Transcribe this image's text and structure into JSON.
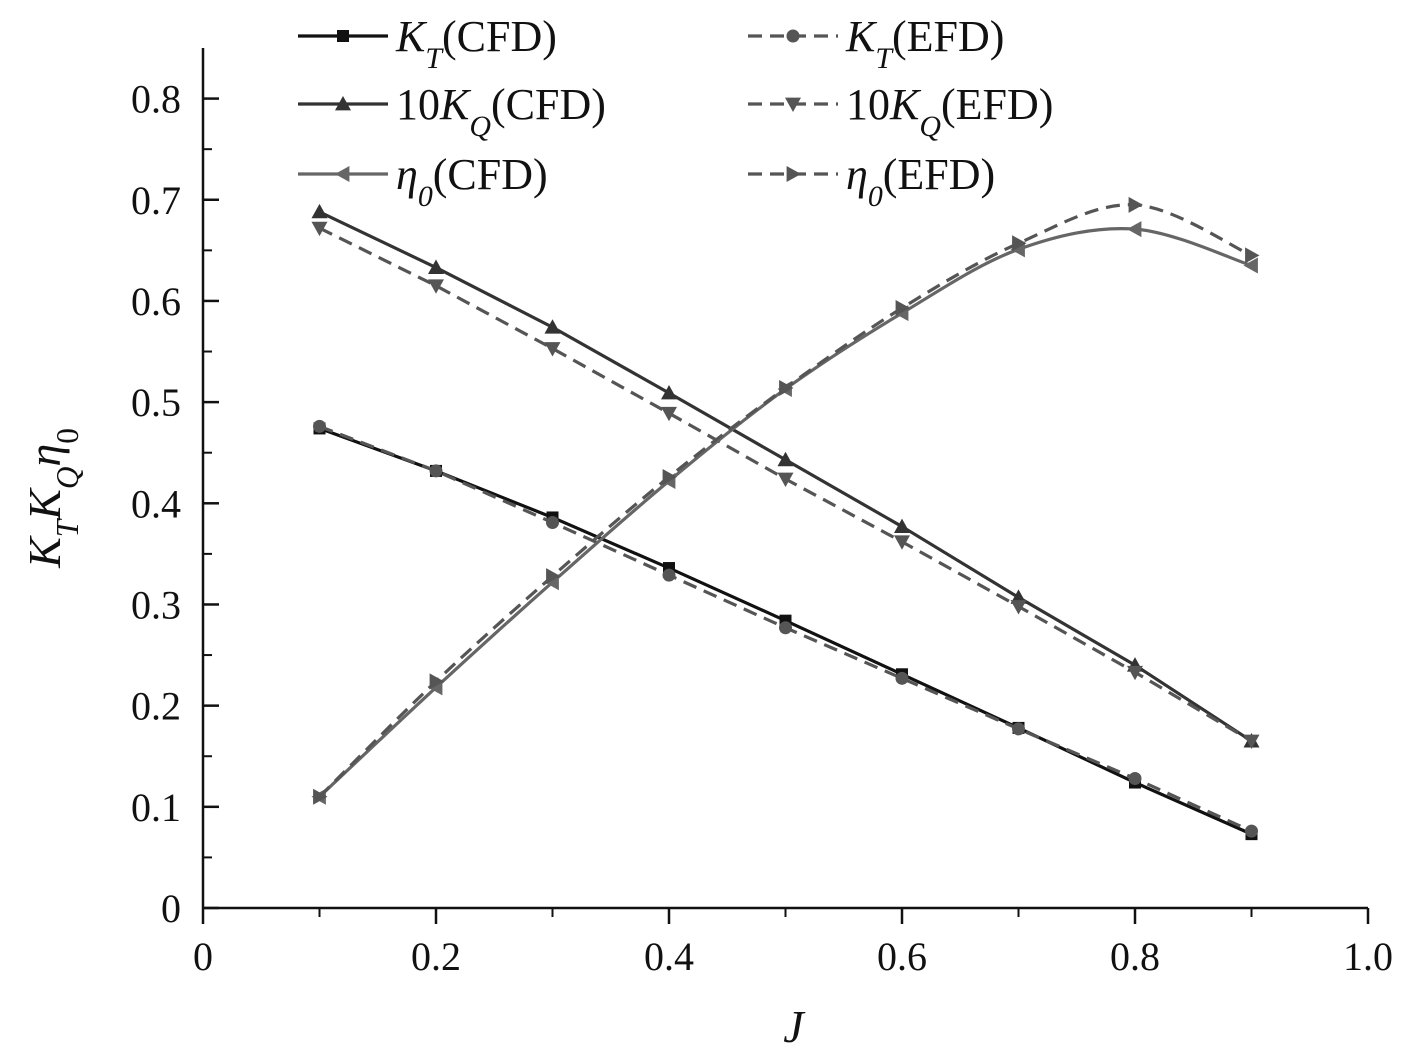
{
  "chart_data": {
    "type": "line",
    "xlabel": "J",
    "ylabel_parts": [
      {
        "t": "K",
        "italic": true
      },
      {
        "t": "T",
        "italic": true,
        "sub": true
      },
      {
        "t": "K",
        "italic": true
      },
      {
        "t": "Q",
        "italic": true,
        "sub": true
      },
      {
        "t": "η",
        "italic": true
      },
      {
        "t": "0",
        "italic": false,
        "sub": true
      }
    ],
    "xlim": [
      0,
      1.0
    ],
    "ylim": [
      0,
      0.85
    ],
    "x_ticks": [
      0,
      0.2,
      0.4,
      0.6,
      0.8,
      1.0
    ],
    "x_tick_labels": [
      "0",
      "0.2",
      "0.4",
      "0.6",
      "0.8",
      "1.0"
    ],
    "y_ticks": [
      0,
      0.1,
      0.2,
      0.3,
      0.4,
      0.5,
      0.6,
      0.7,
      0.8
    ],
    "y_tick_labels": [
      "0",
      "0.1",
      "0.2",
      "0.3",
      "0.4",
      "0.5",
      "0.6",
      "0.7",
      "0.8"
    ],
    "grid": false,
    "legend_position": "top",
    "series": [
      {
        "name": "KT(CFD)",
        "label_parts": [
          {
            "t": "K",
            "italic": true
          },
          {
            "t": "T",
            "italic": true,
            "sub": true
          },
          {
            "t": "(CFD)",
            "italic": false
          }
        ],
        "color": "#111111",
        "dash": "solid",
        "marker": "square",
        "x": [
          0.1,
          0.2,
          0.3,
          0.4,
          0.5,
          0.6,
          0.7,
          0.8,
          0.9
        ],
        "y": [
          0.474,
          0.432,
          0.386,
          0.336,
          0.284,
          0.231,
          0.178,
          0.124,
          0.073
        ]
      },
      {
        "name": "KT(EFD)",
        "label_parts": [
          {
            "t": "K",
            "italic": true
          },
          {
            "t": "T",
            "italic": true,
            "sub": true
          },
          {
            "t": "(EFD)",
            "italic": false
          }
        ],
        "color": "#555555",
        "dash": "dashed",
        "marker": "circle",
        "x": [
          0.1,
          0.2,
          0.3,
          0.4,
          0.5,
          0.6,
          0.7,
          0.8,
          0.9
        ],
        "y": [
          0.476,
          0.432,
          0.381,
          0.329,
          0.277,
          0.227,
          0.177,
          0.128,
          0.076
        ]
      },
      {
        "name": "10KQ(CFD)",
        "label_parts": [
          {
            "t": "10",
            "italic": false
          },
          {
            "t": "K",
            "italic": true
          },
          {
            "t": "Q",
            "italic": true,
            "sub": true
          },
          {
            "t": "(CFD)",
            "italic": false
          }
        ],
        "color": "#333333",
        "dash": "solid",
        "marker": "triangle-up",
        "x": [
          0.1,
          0.2,
          0.3,
          0.4,
          0.5,
          0.6,
          0.7,
          0.8,
          0.9
        ],
        "y": [
          0.688,
          0.633,
          0.574,
          0.509,
          0.443,
          0.377,
          0.307,
          0.24,
          0.165
        ]
      },
      {
        "name": "10KQ(EFD)",
        "label_parts": [
          {
            "t": "10",
            "italic": false
          },
          {
            "t": "K",
            "italic": true
          },
          {
            "t": "Q",
            "italic": true,
            "sub": true
          },
          {
            "t": "(EFD)",
            "italic": false
          }
        ],
        "color": "#555555",
        "dash": "dashed",
        "marker": "triangle-down",
        "x": [
          0.1,
          0.2,
          0.3,
          0.4,
          0.5,
          0.6,
          0.7,
          0.8,
          0.9
        ],
        "y": [
          0.672,
          0.615,
          0.553,
          0.489,
          0.424,
          0.362,
          0.298,
          0.233,
          0.165
        ]
      },
      {
        "name": "η0(CFD)",
        "label_parts": [
          {
            "t": "η",
            "italic": true
          },
          {
            "t": "0",
            "italic": true,
            "sub": true
          },
          {
            "t": "(CFD)",
            "italic": false
          }
        ],
        "color": "#666666",
        "dash": "solid",
        "marker": "triangle-left",
        "smooth": true,
        "x": [
          0.1,
          0.2,
          0.3,
          0.4,
          0.5,
          0.6,
          0.7,
          0.8,
          0.9
        ],
        "y": [
          0.11,
          0.218,
          0.322,
          0.422,
          0.513,
          0.588,
          0.651,
          0.671,
          0.635
        ]
      },
      {
        "name": "η0(EFD)",
        "label_parts": [
          {
            "t": "η",
            "italic": true
          },
          {
            "t": "0",
            "italic": true,
            "sub": true
          },
          {
            "t": "(EFD)",
            "italic": false
          }
        ],
        "color": "#555555",
        "dash": "dashed",
        "marker": "triangle-right",
        "smooth": true,
        "x": [
          0.1,
          0.2,
          0.3,
          0.4,
          0.5,
          0.6,
          0.7,
          0.8,
          0.9
        ],
        "y": [
          0.11,
          0.224,
          0.328,
          0.426,
          0.514,
          0.593,
          0.657,
          0.695,
          0.645
        ]
      }
    ]
  }
}
